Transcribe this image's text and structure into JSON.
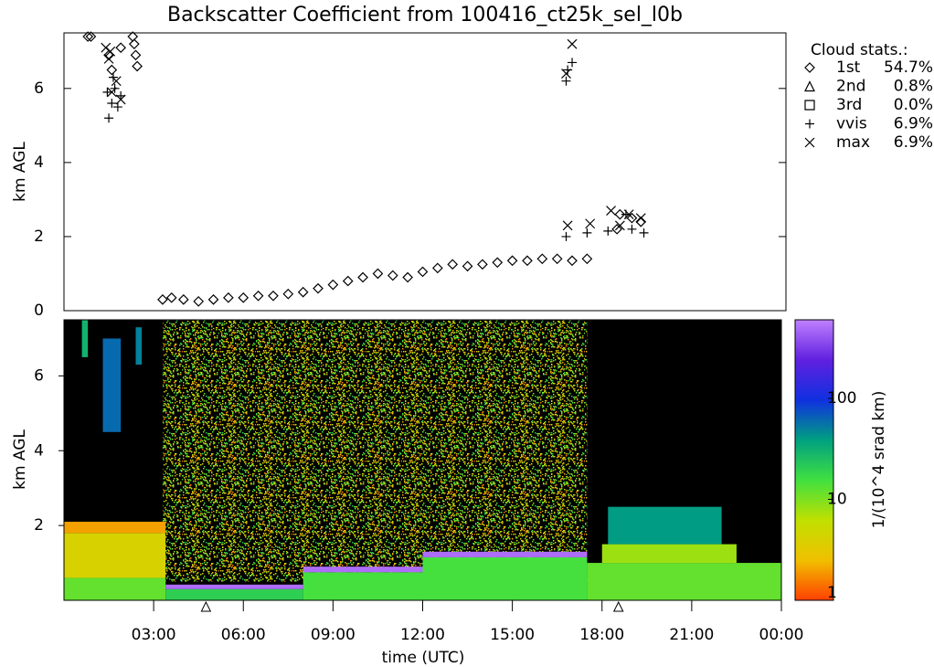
{
  "chart_data": [
    {
      "type": "scatter",
      "title": "Backscatter Coefficient from 100416_ct25k_sel_l0b",
      "ylabel": "km AGL",
      "xlim": [
        0,
        24
      ],
      "ylim": [
        0,
        7.5
      ],
      "yticks": [
        0,
        2,
        4,
        6
      ],
      "legend_title": "Cloud stats.:",
      "series": [
        {
          "name": "1st",
          "stat": "54.7%",
          "marker": "diamond",
          "color": "#000000",
          "x": [
            0.8,
            0.9,
            1.9,
            1.5,
            2.3,
            2.35,
            2.4,
            2.45,
            1.6,
            3.3,
            3.6,
            4.0,
            4.5,
            5.0,
            5.5,
            6.0,
            6.5,
            7.0,
            7.5,
            8.0,
            8.5,
            9.0,
            9.5,
            10.0,
            10.5,
            11.0,
            11.5,
            12.0,
            12.5,
            13.0,
            13.5,
            14.0,
            14.5,
            15.0,
            15.5,
            16.0,
            16.5,
            17.0,
            17.5,
            18.5,
            18.6,
            19.0,
            19.3
          ],
          "values": [
            7.4,
            7.4,
            7.1,
            6.9,
            7.4,
            7.2,
            6.9,
            6.6,
            6.5,
            0.3,
            0.35,
            0.3,
            0.25,
            0.3,
            0.35,
            0.35,
            0.4,
            0.4,
            0.45,
            0.5,
            0.6,
            0.7,
            0.8,
            0.9,
            1.0,
            0.95,
            0.9,
            1.05,
            1.15,
            1.25,
            1.2,
            1.25,
            1.3,
            1.35,
            1.35,
            1.4,
            1.4,
            1.35,
            1.4,
            2.2,
            2.6,
            2.5,
            2.4
          ]
        },
        {
          "name": "2nd",
          "stat": "0.8%",
          "marker": "triangle",
          "color": "#000000",
          "x": [],
          "values": []
        },
        {
          "name": "3rd",
          "stat": "0.0%",
          "marker": "square",
          "color": "#000000",
          "x": [],
          "values": []
        },
        {
          "name": "vvis",
          "stat": "6.9%",
          "marker": "plus",
          "color": "#000000",
          "x": [
            1.5,
            1.6,
            1.7,
            1.8,
            1.9,
            1.65,
            1.45,
            16.8,
            16.85,
            17.0,
            16.8,
            17.5,
            18.2,
            19.0,
            19.4,
            18.8
          ],
          "values": [
            5.2,
            5.6,
            6.0,
            5.5,
            5.8,
            6.3,
            5.9,
            6.2,
            6.5,
            6.7,
            2.0,
            2.1,
            2.15,
            2.2,
            2.1,
            2.6
          ]
        },
        {
          "name": "max",
          "stat": "6.9%",
          "marker": "cross",
          "color": "#000000",
          "x": [
            1.4,
            1.5,
            1.6,
            1.75,
            1.9,
            1.55,
            16.8,
            17.0,
            16.85,
            17.6,
            18.3,
            18.9,
            19.3,
            18.6
          ],
          "values": [
            7.1,
            6.8,
            5.9,
            6.2,
            5.7,
            7.0,
            6.4,
            7.2,
            2.3,
            2.35,
            2.7,
            2.6,
            2.5,
            2.3
          ]
        }
      ]
    },
    {
      "type": "heatmap",
      "ylabel": "km AGL",
      "xlabel": "time (UTC)",
      "xlim": [
        0,
        24
      ],
      "ylim": [
        0,
        7.5
      ],
      "yticks": [
        2,
        4,
        6
      ],
      "xticks": [
        {
          "value": 3,
          "label": "03:00"
        },
        {
          "value": 6,
          "label": "06:00"
        },
        {
          "value": 9,
          "label": "09:00"
        },
        {
          "value": 12,
          "label": "12:00"
        },
        {
          "value": 15,
          "label": "15:00"
        },
        {
          "value": 18,
          "label": "18:00"
        },
        {
          "value": 21,
          "label": "21:00"
        },
        {
          "value": 24,
          "label": "00:00"
        }
      ],
      "markers_x": [
        4.75,
        18.55
      ],
      "clim": [
        1,
        600
      ],
      "cticks": [
        1,
        10,
        100
      ],
      "clabel": "1/(10^4 srad km)",
      "colormap": [
        "#ff4000",
        "#f0c000",
        "#c0e000",
        "#40e040",
        "#00a080",
        "#1030e0",
        "#6020e0",
        "#c080ff"
      ],
      "patches": [
        {
          "t": [
            3.3,
            17.5
          ],
          "z": [
            0.5,
            7.5
          ],
          "value": 6,
          "texture": "speckle"
        },
        {
          "t": [
            0,
            3.4
          ],
          "z": [
            0,
            0.6
          ],
          "value": 12
        },
        {
          "t": [
            0,
            3.4
          ],
          "z": [
            0.6,
            1.8
          ],
          "value": 4
        },
        {
          "t": [
            0,
            3.4
          ],
          "z": [
            1.8,
            2.1
          ],
          "value": 2
        },
        {
          "t": [
            3.4,
            8
          ],
          "z": [
            0,
            0.3
          ],
          "value": 20
        },
        {
          "t": [
            3.4,
            8
          ],
          "z": [
            0.3,
            0.42
          ],
          "value": 500
        },
        {
          "t": [
            8,
            12
          ],
          "z": [
            0,
            0.75
          ],
          "value": 15
        },
        {
          "t": [
            8,
            12
          ],
          "z": [
            0.75,
            0.9
          ],
          "value": 500
        },
        {
          "t": [
            12,
            17.5
          ],
          "z": [
            0,
            1.15
          ],
          "value": 15
        },
        {
          "t": [
            12,
            17.5
          ],
          "z": [
            1.15,
            1.3
          ],
          "value": 500
        },
        {
          "t": [
            17.5,
            24
          ],
          "z": [
            0,
            1.0
          ],
          "value": 12
        },
        {
          "t": [
            18,
            22.5
          ],
          "z": [
            1.0,
            1.5
          ],
          "value": 8
        },
        {
          "t": [
            18.2,
            22
          ],
          "z": [
            1.5,
            2.5
          ],
          "value": 40
        },
        {
          "t": [
            0.6,
            0.8
          ],
          "z": [
            6.5,
            7.5
          ],
          "value": 30
        },
        {
          "t": [
            1.3,
            1.9
          ],
          "z": [
            4.5,
            7.0
          ],
          "value": 60
        },
        {
          "t": [
            2.4,
            2.6
          ],
          "z": [
            6.3,
            7.3
          ],
          "value": 50
        }
      ]
    }
  ]
}
